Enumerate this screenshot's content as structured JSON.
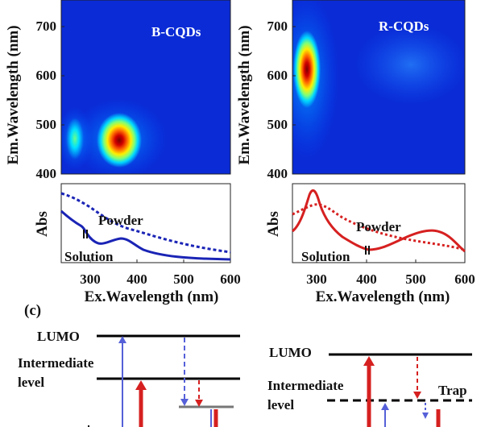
{
  "panels": [
    {
      "id": "b",
      "map_label": "B-CQDs",
      "ylabel": "Em.Wavelength (nm)",
      "em_ticks": [
        "400",
        "500",
        "600",
        "700"
      ],
      "abs_ylabel": "Abs",
      "powder_label": "Powder",
      "solution_label": "Solution",
      "xlabel": "Ex.Wavelength (nm)",
      "ex_ticks": [
        "300",
        "400",
        "500",
        "600"
      ],
      "hotspots": [
        {
          "ex": 373,
          "em": 465,
          "strength": "strong"
        },
        {
          "ex": 283,
          "em": 462,
          "strength": "weak"
        }
      ]
    },
    {
      "id": "r",
      "map_label": "R-CQDs",
      "ylabel": "Em.Wavelength (nm)",
      "em_ticks": [
        "400",
        "500",
        "600",
        "700"
      ],
      "abs_ylabel": "Abs",
      "powder_label": "Powder",
      "solution_label": "Solution",
      "xlabel": "Ex.Wavelength (nm)",
      "ex_ticks": [
        "300",
        "400",
        "500",
        "600"
      ],
      "hotspots": [
        {
          "ex": 283,
          "em": 615,
          "strength": "strong"
        },
        {
          "ex": 390,
          "em": 640,
          "strength": "weak"
        }
      ]
    }
  ],
  "chart_data": [
    {
      "type": "heatmap",
      "title": "B-CQDs",
      "xlabel": "Ex.Wavelength (nm)",
      "ylabel": "Em.Wavelength (nm)",
      "xlim": [
        250,
        600
      ],
      "ylim": [
        400,
        750
      ],
      "peaks": [
        {
          "x": 373,
          "y": 465,
          "intensity": 1.0
        },
        {
          "x": 283,
          "y": 462,
          "intensity": 0.45
        }
      ]
    },
    {
      "type": "line",
      "xlabel": "Ex.Wavelength (nm)",
      "ylabel": "Abs",
      "xlim": [
        250,
        600
      ],
      "x": [
        250,
        260,
        270,
        280,
        290,
        300,
        310,
        320,
        340,
        360,
        375,
        390,
        420,
        460,
        500,
        550,
        600
      ],
      "series": [
        {
          "name": "Powder",
          "style": "dotted",
          "color": "#1a24b5",
          "values": [
            0.95,
            0.88,
            0.8,
            0.75,
            0.68,
            0.62,
            0.55,
            0.5,
            0.45,
            0.42,
            0.4,
            0.37,
            0.3,
            0.24,
            0.2,
            0.16,
            0.14
          ]
        },
        {
          "name": "Solution",
          "style": "solid",
          "color": "#1a24b5",
          "values": [
            0.78,
            0.65,
            0.55,
            0.58,
            0.45,
            0.35,
            0.3,
            0.22,
            0.2,
            0.25,
            0.28,
            0.22,
            0.12,
            0.08,
            0.06,
            0.05,
            0.05
          ]
        }
      ]
    },
    {
      "type": "heatmap",
      "title": "R-CQDs",
      "xlabel": "Ex.Wavelength (nm)",
      "ylabel": "Em.Wavelength (nm)",
      "xlim": [
        250,
        600
      ],
      "ylim": [
        400,
        750
      ],
      "peaks": [
        {
          "x": 283,
          "y": 615,
          "intensity": 1.0
        },
        {
          "x": 390,
          "y": 640,
          "intensity": 0.15
        }
      ]
    },
    {
      "type": "line",
      "xlabel": "Ex.Wavelength (nm)",
      "ylabel": "Abs",
      "xlim": [
        250,
        600
      ],
      "x": [
        250,
        260,
        270,
        280,
        290,
        300,
        320,
        350,
        400,
        450,
        500,
        540,
        570,
        600
      ],
      "series": [
        {
          "name": "Powder",
          "style": "dotted",
          "color": "#d62020",
          "values": [
            0.62,
            0.66,
            0.72,
            0.78,
            0.75,
            0.68,
            0.58,
            0.48,
            0.4,
            0.35,
            0.3,
            0.25,
            0.18,
            0.1
          ]
        },
        {
          "name": "Solution",
          "style": "solid",
          "color": "#d62020",
          "values": [
            0.35,
            0.5,
            0.78,
            0.95,
            0.8,
            0.55,
            0.35,
            0.2,
            0.05,
            0.1,
            0.25,
            0.33,
            0.28,
            0.1
          ]
        }
      ]
    }
  ],
  "diagram": {
    "panel_label": "(c)",
    "left": {
      "lumo": "LUMO",
      "inter1": "Intermediate",
      "inter2": "level"
    },
    "right": {
      "lumo": "LUMO",
      "inter1": "Intermediate",
      "inter2": "level",
      "trap": "Trap"
    }
  },
  "colors": {
    "blue": "#1a24b5",
    "red": "#d62020",
    "arrow_blue": "#5560d8"
  }
}
